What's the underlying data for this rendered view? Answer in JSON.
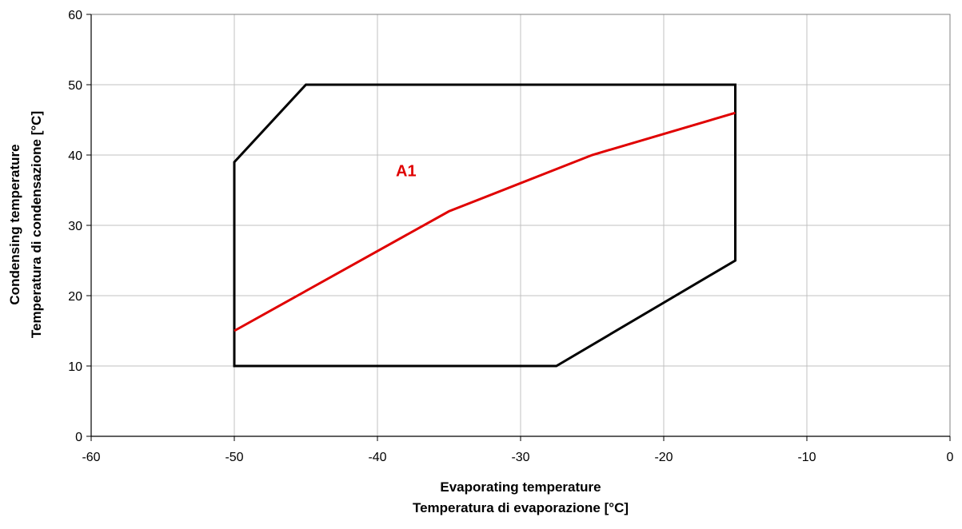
{
  "chart_data": {
    "type": "line",
    "xlabel": [
      "Evaporating temperature",
      "Temperatura di evaporazione [°C]"
    ],
    "ylabel": [
      "Condensing temperature",
      "Temperatura di condensazione [°C]"
    ],
    "xlim": [
      -60,
      0
    ],
    "ylim": [
      0,
      60
    ],
    "x_ticks": [
      -60,
      -50,
      -40,
      -30,
      -20,
      -10,
      0
    ],
    "y_ticks": [
      0,
      10,
      20,
      30,
      40,
      50,
      60
    ],
    "grid": true,
    "series": [
      {
        "color": "#000000",
        "closed": true,
        "points": [
          [
            -50,
            10
          ],
          [
            -50,
            39
          ],
          [
            -45,
            50
          ],
          [
            -15,
            50
          ],
          [
            -15,
            25
          ],
          [
            -27.5,
            10
          ]
        ]
      },
      {
        "color": "#e00000",
        "closed": false,
        "points": [
          [
            -50,
            15
          ],
          [
            -35,
            32
          ],
          [
            -25,
            40
          ],
          [
            -15,
            46
          ]
        ]
      }
    ],
    "annotations": [
      {
        "text": "A1",
        "x": -38,
        "y": 37,
        "color": "#e00000"
      }
    ]
  }
}
